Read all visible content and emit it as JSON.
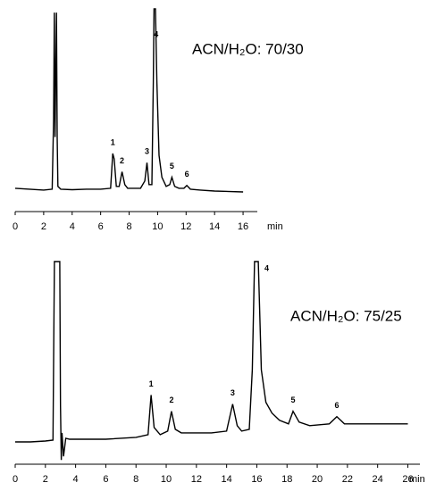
{
  "chart_data": [
    {
      "type": "line",
      "annotation": "ACN/H₂O: 70/30",
      "x_label": "min",
      "xlim": [
        0,
        17
      ],
      "xticks": [
        0,
        2,
        4,
        6,
        8,
        10,
        12,
        14,
        16
      ],
      "series": [
        {
          "color": "#000000",
          "x": [
            0,
            1,
            2,
            2.6,
            2.7,
            2.75,
            2.8,
            2.9,
            2.95,
            3.0,
            3.2,
            4,
            5,
            6,
            6.7,
            6.85,
            6.95,
            7.1,
            7.3,
            7.5,
            7.7,
            7.9,
            8.8,
            9.1,
            9.25,
            9.4,
            9.6,
            9.7,
            9.75,
            9.85,
            9.95,
            10.1,
            10.3,
            10.6,
            10.85,
            11.0,
            11.2,
            11.5,
            11.85,
            12.05,
            12.3,
            13,
            14,
            16
          ],
          "values": [
            2,
            1.5,
            1,
            1.5,
            40,
            98,
            30,
            98,
            30,
            3,
            1.5,
            1.2,
            1.5,
            1.5,
            2,
            21,
            18,
            3,
            3,
            11,
            4,
            2,
            2,
            6,
            16,
            4,
            4,
            60,
            100,
            100,
            60,
            20,
            8,
            3,
            4,
            8,
            3,
            2,
            2,
            3.5,
            1.5,
            1,
            0.5,
            0
          ]
        }
      ],
      "peak_labels": [
        "1",
        "2",
        "3",
        "4",
        "5",
        "6"
      ],
      "peak_x": [
        6.85,
        7.5,
        9.25,
        9.9,
        11.0,
        12.05
      ]
    },
    {
      "type": "line",
      "annotation": "ACN/H₂O: 75/25",
      "x_label": "min",
      "xlim": [
        0,
        26.8
      ],
      "xticks": [
        0,
        2,
        4,
        6,
        8,
        10,
        12,
        14,
        16,
        18,
        20,
        22,
        24,
        26
      ],
      "series": [
        {
          "color": "#000000",
          "x": [
            0,
            1,
            2,
            2.5,
            2.6,
            2.95,
            3.0,
            3.05,
            3.1,
            3.2,
            3.35,
            3.6,
            4,
            6,
            8,
            8.8,
            9.0,
            9.2,
            9.6,
            10.1,
            10.35,
            10.6,
            11,
            13,
            14.0,
            14.4,
            14.7,
            15,
            15.5,
            15.7,
            15.85,
            16.1,
            16.3,
            16.6,
            17,
            17.5,
            18.1,
            18.4,
            18.8,
            19.5,
            20.8,
            21.3,
            21.8,
            23,
            26
          ],
          "values": [
            0,
            0,
            0.5,
            1,
            100,
            100,
            20,
            -10,
            5,
            -8,
            2,
            1.5,
            1.5,
            1.5,
            2.5,
            4,
            26,
            8,
            4,
            6,
            17,
            7,
            5,
            5,
            6,
            21,
            9,
            6,
            7,
            40,
            100,
            100,
            40,
            22,
            16,
            12,
            10,
            17,
            11,
            9,
            10,
            14,
            10,
            10,
            10
          ]
        }
      ],
      "peak_labels": [
        "1",
        "2",
        "3",
        "4",
        "5",
        "6"
      ],
      "peak_x": [
        9.0,
        10.35,
        14.4,
        16.0,
        18.4,
        21.3
      ]
    }
  ]
}
